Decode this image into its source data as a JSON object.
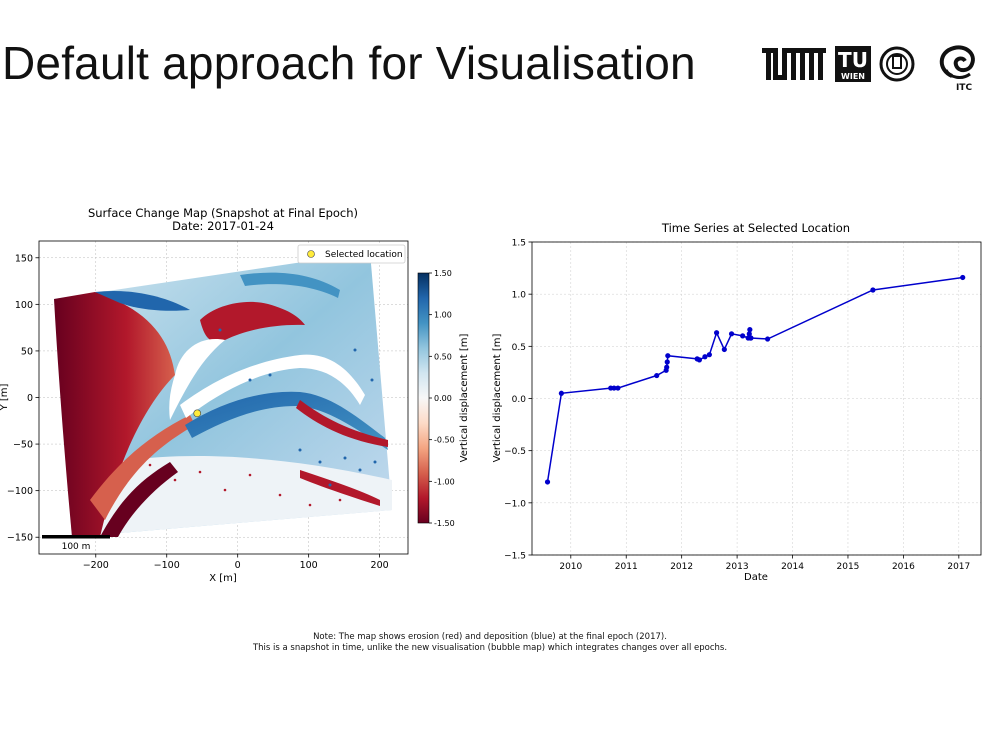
{
  "slide": {
    "title": "Default approach for Visualisation",
    "note_line1": "Note: The map shows erosion (red) and deposition (blue) at the final epoch (2017).",
    "note_line2": "This is a snapshot in time, unlike the new visualisation (bubble map) which integrates changes over all epochs."
  },
  "logos": [
    {
      "name": "tum-logo",
      "text": "TUM"
    },
    {
      "name": "tu-wien-logo",
      "text": "TU WIEN"
    },
    {
      "name": "tu-delft-logo",
      "text": ""
    },
    {
      "name": "itc-logo",
      "text": "ITC"
    }
  ],
  "chart_data": [
    {
      "type": "heatmap",
      "title": "Surface Change Map (Snapshot at Final Epoch)",
      "subtitle": "Date: 2017-01-24",
      "xlabel": "X [m]",
      "ylabel": "Y [m]",
      "xlim": [
        -280,
        240
      ],
      "ylim": [
        -168,
        168
      ],
      "xticks": [
        -200,
        -100,
        0,
        100,
        200
      ],
      "xtick_labels": [
        "−200",
        "−100",
        "0",
        "100",
        "200"
      ],
      "yticks": [
        150,
        100,
        50,
        0,
        -50,
        -100,
        -150
      ],
      "ytick_labels": [
        "150",
        "100",
        "50",
        "0",
        "−50",
        "−100",
        "−150"
      ],
      "grid": true,
      "legend": {
        "label": "Selected location",
        "placement": "top-right"
      },
      "selected_location": {
        "x": -57,
        "y": -17
      },
      "scalebar_label": "100 m",
      "colorbar": {
        "label": "Vertical displacement [m]",
        "range": [
          -1.5,
          1.5
        ],
        "ticks": [
          1.5,
          1.0,
          0.5,
          0.0,
          -0.5,
          -1.0,
          -1.5
        ],
        "tick_labels": [
          "1.50",
          "1.00",
          "0.50",
          "0.00",
          "-0.50",
          "-1.00",
          "-1.50"
        ],
        "colormap": [
          "#67001f",
          "#b2182b",
          "#d6604d",
          "#f4a582",
          "#fddbc7",
          "#f7f7f7",
          "#d1e5f0",
          "#92c5de",
          "#4393c3",
          "#2166ac",
          "#053061"
        ]
      }
    },
    {
      "type": "line",
      "title": "Time Series at Selected Location",
      "xlabel": "Date",
      "ylabel": "Vertical displacement [m]",
      "xlim": [
        2009.3,
        2017.4
      ],
      "ylim": [
        -1.5,
        1.5
      ],
      "xticks": [
        2010,
        2011,
        2012,
        2013,
        2014,
        2015,
        2016,
        2017
      ],
      "xtick_labels": [
        "2010",
        "2011",
        "2012",
        "2013",
        "2014",
        "2015",
        "2016",
        "2017"
      ],
      "yticks": [
        1.5,
        1.0,
        0.5,
        0.0,
        -0.5,
        -1.0,
        -1.5
      ],
      "ytick_labels": [
        "1.5",
        "1.0",
        "0.5",
        "0.0",
        "−0.5",
        "−1.0",
        "−1.5"
      ],
      "grid": true,
      "color": "#0000cc",
      "x": [
        2009.58,
        2009.83,
        2010.72,
        2010.78,
        2010.85,
        2011.55,
        2011.72,
        2011.73,
        2011.74,
        2011.75,
        2012.28,
        2012.32,
        2012.42,
        2012.5,
        2012.63,
        2012.77,
        2012.9,
        2013.1,
        2013.2,
        2013.22,
        2013.23,
        2013.24,
        2013.25,
        2013.55,
        2015.45,
        2017.07
      ],
      "y": [
        -0.8,
        0.05,
        0.1,
        0.1,
        0.1,
        0.22,
        0.27,
        0.3,
        0.35,
        0.41,
        0.38,
        0.37,
        0.4,
        0.42,
        0.63,
        0.47,
        0.62,
        0.6,
        0.58,
        0.62,
        0.66,
        0.58,
        0.58,
        0.57,
        1.04,
        1.16
      ]
    }
  ]
}
